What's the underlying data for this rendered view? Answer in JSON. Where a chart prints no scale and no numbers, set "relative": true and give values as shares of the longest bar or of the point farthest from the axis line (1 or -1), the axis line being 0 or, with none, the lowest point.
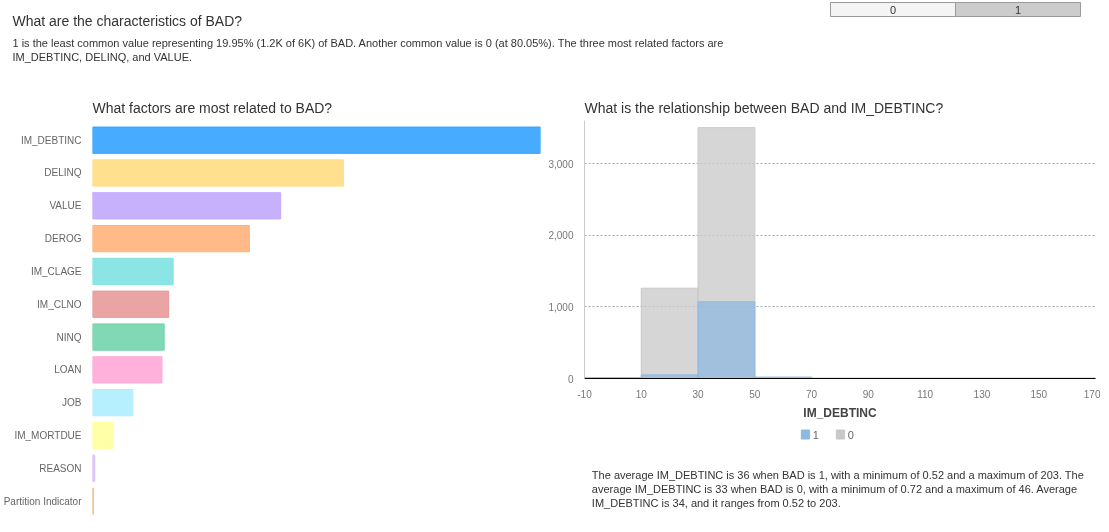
{
  "chart_data": [
    {
      "type": "other",
      "title": "What are the characteristics of BAD?",
      "subtitle": "1 is the least common value representing 19.95% (1.2K of 6K) of BAD. Another common value is 0 (at 80.05%). The three most related factors are IM_DEBTINC, DELINQ, and VALUE.",
      "annotations": [
        "0",
        "1"
      ]
    },
    {
      "type": "bar",
      "orientation": "horizontal",
      "relative": true,
      "title": "What factors are most related to BAD?",
      "categories": [
        "IM_DEBTINC",
        "DELINQ",
        "VALUE",
        "DEROG",
        "IM_CLAGE",
        "IM_CLNO",
        "NINQ",
        "LOAN",
        "JOB",
        "IM_MORTDUE",
        "REASON",
        "Partition Indicator"
      ],
      "values": [
        1,
        0.56,
        0.42,
        0.35,
        0.18,
        0.17,
        0.16,
        0.155,
        0.09,
        0.046,
        0.005,
        0.002
      ],
      "colors": [
        "#33a3ff",
        "#ffdd83",
        "#c2a8fc",
        "#ffb27a",
        "#80e2e2",
        "#e89a9a",
        "#72d4ac",
        "#ffa8d8",
        "#aeeeff",
        "#ffff9e",
        "#d8c0f8",
        "#f0c080"
      ],
      "tick_labels": "y",
      "grid": false
    },
    {
      "type": "histogram",
      "title": "What is the relationship between BAD and IM_DEBTINC?",
      "xlabel": "IM_DEBTINC",
      "bins": [
        -10,
        10,
        30,
        50,
        70,
        90,
        110,
        130,
        150,
        170
      ],
      "series": [
        {
          "name": "1",
          "color": "#8fb8e0",
          "values": [
            10,
            50,
            1070,
            20,
            5,
            5,
            5,
            5,
            5
          ]
        },
        {
          "name": "0",
          "color": "#c8c8c8",
          "values": [
            10,
            1260,
            3500,
            0,
            0,
            0,
            0,
            0,
            0
          ]
        }
      ],
      "xlim": [
        -10,
        170
      ],
      "xticks": [
        -10,
        10,
        30,
        50,
        70,
        90,
        110,
        130,
        150,
        170
      ],
      "ylim": [
        0,
        3600
      ],
      "yticks": [
        0,
        {
          "value": 1000,
          "label": "1,000"
        },
        {
          "value": 2000,
          "label": "2,000"
        },
        {
          "value": 3000,
          "label": "3,000"
        }
      ],
      "grid": "y",
      "legend": "bottom",
      "annotations": [
        "The average IM_DEBTINC is 36 when BAD is 1, with a minimum of 0.52 and a maximum of 203. The average IM_DEBTINC is 33 when BAD is 0, with a minimum of 0.72 and a maximum of 46. Average IM_DEBTINC is 34, and it ranges from 0.52 to 203."
      ]
    }
  ]
}
